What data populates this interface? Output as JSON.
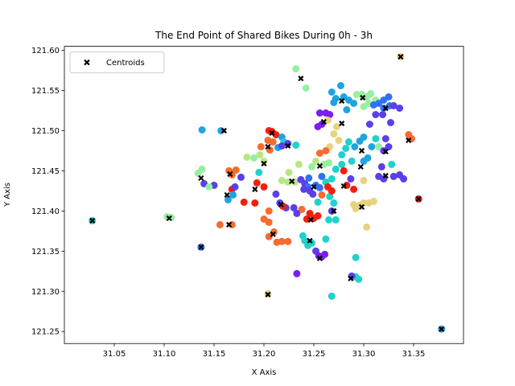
{
  "chart_data": {
    "type": "scatter",
    "title": "The End Point of Shared Bikes During 0h - 3h",
    "xlabel": "X Axis",
    "ylabel": "Y Axis",
    "xlim": [
      31.0,
      31.4
    ],
    "ylim": [
      121.235,
      121.605
    ],
    "xticks": [
      "31.05",
      "31.10",
      "31.15",
      "31.20",
      "31.25",
      "31.30",
      "31.35"
    ],
    "yticks": [
      "121.25",
      "121.30",
      "121.35",
      "121.40",
      "121.45",
      "121.50",
      "121.55",
      "121.60"
    ],
    "grid": false,
    "legend_position": "top-left",
    "legend_entries": [
      "Centroids"
    ],
    "points": [
      [
        31.138,
        121.501,
        "#1fa4e0"
      ],
      [
        31.157,
        121.5,
        "#1fa4e0"
      ],
      [
        31.165,
        121.45,
        "#f66b30"
      ],
      [
        31.172,
        121.451,
        "#f66b30"
      ],
      [
        31.168,
        121.445,
        "#f66b30"
      ],
      [
        31.177,
        121.442,
        "#5c3fe8"
      ],
      [
        31.14,
        121.434,
        "#5c3fe8"
      ],
      [
        31.15,
        121.432,
        "#5c3fe8"
      ],
      [
        31.145,
        121.43,
        "#97f0a0"
      ],
      [
        31.168,
        121.427,
        "#f31e0f"
      ],
      [
        31.171,
        121.43,
        "#5c3fe8"
      ],
      [
        31.18,
        121.411,
        "#f31e0f"
      ],
      [
        31.169,
        121.42,
        "#1fa4e0"
      ],
      [
        31.164,
        121.414,
        "#1fa4e0"
      ],
      [
        31.156,
        121.383,
        "#f66b30"
      ],
      [
        31.168,
        121.383,
        "#f66b30"
      ],
      [
        31.137,
        121.355,
        "#3070f3"
      ],
      [
        31.107,
        121.392,
        "#97f0a0"
      ],
      [
        31.103,
        121.393,
        "#97f0a0"
      ],
      [
        31.028,
        121.388,
        "#1fd2cc"
      ],
      [
        31.183,
        121.467,
        "#b8e880"
      ],
      [
        31.19,
        121.466,
        "#97f0a0"
      ],
      [
        31.195,
        121.448,
        "#1fd2cc"
      ],
      [
        31.196,
        121.47,
        "#b8e880"
      ],
      [
        31.197,
        121.48,
        "#f66b30"
      ],
      [
        31.2,
        121.462,
        "#b8e880"
      ],
      [
        31.204,
        121.488,
        "#f66b30"
      ],
      [
        31.208,
        121.499,
        "#f31e0f"
      ],
      [
        31.205,
        121.5,
        "#f31e0f"
      ],
      [
        31.212,
        121.495,
        "#f31e0f"
      ],
      [
        31.209,
        121.486,
        "#f66b30"
      ],
      [
        31.206,
        121.476,
        "#f66b30"
      ],
      [
        31.214,
        121.479,
        "#1fa4e0"
      ],
      [
        31.218,
        121.492,
        "#1fa4e0"
      ],
      [
        31.22,
        121.486,
        "#1fd2cc"
      ],
      [
        31.218,
        121.481,
        "#5c3fe8"
      ],
      [
        31.224,
        121.484,
        "#5c3fe8"
      ],
      [
        31.232,
        121.482,
        "#1fd2cc"
      ],
      [
        31.235,
        121.458,
        "#b8e880"
      ],
      [
        31.225,
        121.448,
        "#b8e880"
      ],
      [
        31.218,
        121.438,
        "#b8e880"
      ],
      [
        31.224,
        121.436,
        "#b8e880"
      ],
      [
        31.231,
        121.436,
        "#b8e880"
      ],
      [
        31.237,
        121.439,
        "#5c3fe8"
      ],
      [
        31.241,
        121.434,
        "#5c3fe8"
      ],
      [
        31.244,
        121.43,
        "#3070f3"
      ],
      [
        31.246,
        121.425,
        "#5c3fe8"
      ],
      [
        31.249,
        121.421,
        "#5c3fe8"
      ],
      [
        31.245,
        121.441,
        "#3070f3"
      ],
      [
        31.24,
        121.427,
        "#5c3fe8"
      ],
      [
        31.252,
        121.432,
        "#3070f3"
      ],
      [
        31.256,
        121.429,
        "#3070f3"
      ],
      [
        31.258,
        121.443,
        "#3070f3"
      ],
      [
        31.262,
        121.436,
        "#1fd2cc"
      ],
      [
        31.264,
        121.43,
        "#f31e0f"
      ],
      [
        31.266,
        121.418,
        "#1fd2cc"
      ],
      [
        31.268,
        121.425,
        "#f31e0f"
      ],
      [
        31.27,
        121.41,
        "#1fd2cc"
      ],
      [
        31.258,
        121.42,
        "#f66b30"
      ],
      [
        31.254,
        121.411,
        "#1fd2cc"
      ],
      [
        31.254,
        121.394,
        "#f31e0f"
      ],
      [
        31.25,
        121.391,
        "#f31e0f"
      ],
      [
        31.246,
        121.397,
        "#f31e0f"
      ],
      [
        31.243,
        121.39,
        "#f31e0f"
      ],
      [
        31.238,
        121.402,
        "#f66b30"
      ],
      [
        31.233,
        121.397,
        "#5c3fe8"
      ],
      [
        31.23,
        121.404,
        "#5c3fe8"
      ],
      [
        31.222,
        121.404,
        "#5c3fe8"
      ],
      [
        31.219,
        121.406,
        "#f31e0f"
      ],
      [
        31.216,
        121.41,
        "#5c3fe8"
      ],
      [
        31.212,
        121.421,
        "#5c3fe8"
      ],
      [
        31.2,
        121.43,
        "#f31e0f"
      ],
      [
        31.193,
        121.435,
        "#f31e0f"
      ],
      [
        31.191,
        121.41,
        "#f31e0f"
      ],
      [
        31.2,
        121.39,
        "#f66b30"
      ],
      [
        31.205,
        121.386,
        "#f66b30"
      ],
      [
        31.205,
        121.368,
        "#f66b30"
      ],
      [
        31.213,
        121.361,
        "#f66b30"
      ],
      [
        31.218,
        121.362,
        "#f66b30"
      ],
      [
        31.224,
        121.362,
        "#f66b30"
      ],
      [
        31.239,
        121.369,
        "#1fd2cc"
      ],
      [
        31.241,
        121.363,
        "#1fd2cc"
      ],
      [
        31.244,
        121.357,
        "#1fd2cc"
      ],
      [
        31.248,
        121.36,
        "#1fd2cc"
      ],
      [
        31.252,
        121.35,
        "#5c3fe8"
      ],
      [
        31.255,
        121.344,
        "#7a1ff0"
      ],
      [
        31.258,
        121.343,
        "#7a1ff0"
      ],
      [
        31.261,
        121.346,
        "#7a1ff0"
      ],
      [
        31.262,
        121.365,
        "#1fd2cc"
      ],
      [
        31.265,
        121.389,
        "#1fd2cc"
      ],
      [
        31.233,
        121.322,
        "#7a1ff0"
      ],
      [
        31.268,
        121.294,
        "#1fd2cc"
      ],
      [
        31.292,
        121.342,
        "#1fd2cc"
      ],
      [
        31.292,
        121.318,
        "#1fd2cc"
      ],
      [
        31.295,
        121.315,
        "#1fd2cc"
      ],
      [
        31.288,
        121.319,
        "#5c3fe8"
      ],
      [
        31.204,
        121.297,
        "#e7d27f"
      ],
      [
        31.232,
        121.577,
        "#97f0a0"
      ],
      [
        31.242,
        121.553,
        "#97f0a0"
      ],
      [
        31.337,
        121.592,
        "#e7d27f"
      ],
      [
        31.254,
        121.505,
        "#7a1ff0"
      ],
      [
        31.258,
        121.508,
        "#7a1ff0"
      ],
      [
        31.256,
        121.522,
        "#7a1ff0"
      ],
      [
        31.262,
        121.522,
        "#7a1ff0"
      ],
      [
        31.266,
        121.52,
        "#7a1ff0"
      ],
      [
        31.27,
        121.535,
        "#1fa4e0"
      ],
      [
        31.268,
        121.548,
        "#1fa4e0"
      ],
      [
        31.272,
        121.54,
        "#1fa4e0"
      ],
      [
        31.277,
        121.556,
        "#1fa4e0"
      ],
      [
        31.28,
        121.542,
        "#1fa4e0"
      ],
      [
        31.283,
        121.526,
        "#1fa4e0"
      ],
      [
        31.285,
        121.538,
        "#1fa4e0"
      ],
      [
        31.29,
        121.534,
        "#1fa4e0"
      ],
      [
        31.293,
        121.545,
        "#97f0a0"
      ],
      [
        31.298,
        121.545,
        "#97f0a0"
      ],
      [
        31.303,
        121.542,
        "#97f0a0"
      ],
      [
        31.307,
        121.546,
        "#97f0a0"
      ],
      [
        31.312,
        121.538,
        "#97f0a0"
      ],
      [
        31.3,
        121.53,
        "#97f0a0"
      ],
      [
        31.305,
        121.534,
        "#97f0a0"
      ],
      [
        31.31,
        121.532,
        "#3070f3"
      ],
      [
        31.315,
        121.534,
        "#3070f3"
      ],
      [
        31.32,
        121.528,
        "#3070f3"
      ],
      [
        31.326,
        121.531,
        "#3070f3"
      ],
      [
        31.33,
        121.531,
        "#5c3fe8"
      ],
      [
        31.336,
        121.528,
        "#5c3fe8"
      ],
      [
        31.32,
        121.538,
        "#3070f3"
      ],
      [
        31.325,
        121.542,
        "#3070f3"
      ],
      [
        31.312,
        121.52,
        "#5c3fe8"
      ],
      [
        31.306,
        121.508,
        "#5c3fe8"
      ],
      [
        31.319,
        121.52,
        "#5c3fe8"
      ],
      [
        31.327,
        121.51,
        "#5c3fe8"
      ],
      [
        31.3,
        121.492,
        "#1fa4e0"
      ],
      [
        31.296,
        121.487,
        "#1fa4e0"
      ],
      [
        31.291,
        121.48,
        "#1fa4e0"
      ],
      [
        31.285,
        121.486,
        "#1fd2cc"
      ],
      [
        31.282,
        121.478,
        "#1fd2cc"
      ],
      [
        31.278,
        121.47,
        "#1fd2cc"
      ],
      [
        31.275,
        121.488,
        "#e7d27f"
      ],
      [
        31.27,
        121.496,
        "#e7d27f"
      ],
      [
        31.273,
        121.505,
        "#e7d27f"
      ],
      [
        31.264,
        121.513,
        "#e7d27f"
      ],
      [
        31.266,
        121.48,
        "#e7d27f"
      ],
      [
        31.262,
        121.475,
        "#f66b30"
      ],
      [
        31.256,
        121.472,
        "#f66b30"
      ],
      [
        31.252,
        121.462,
        "#b8e880"
      ],
      [
        31.248,
        121.455,
        "#97f0a0"
      ],
      [
        31.26,
        121.458,
        "#97f0a0"
      ],
      [
        31.265,
        121.46,
        "#97f0a0"
      ],
      [
        31.278,
        121.458,
        "#1fd2cc"
      ],
      [
        31.288,
        121.462,
        "#1fd2cc"
      ],
      [
        31.3,
        121.462,
        "#1fa4e0"
      ],
      [
        31.304,
        121.466,
        "#1fa4e0"
      ],
      [
        31.308,
        121.48,
        "#1fa4e0"
      ],
      [
        31.315,
        121.48,
        "#97f0a0"
      ],
      [
        31.312,
        121.49,
        "#1fd2cc"
      ],
      [
        31.32,
        121.475,
        "#5c3fe8"
      ],
      [
        31.322,
        121.49,
        "#5c3fe8"
      ],
      [
        31.325,
        121.48,
        "#5c3fe8"
      ],
      [
        31.328,
        121.458,
        "#1fd2cc"
      ],
      [
        31.318,
        121.455,
        "#5c3fe8"
      ],
      [
        31.315,
        121.443,
        "#5c3fe8"
      ],
      [
        31.32,
        121.44,
        "#5c3fe8"
      ],
      [
        31.33,
        121.443,
        "#5c3fe8"
      ],
      [
        31.336,
        121.445,
        "#5c3fe8"
      ],
      [
        31.34,
        121.44,
        "#5c3fe8"
      ],
      [
        31.345,
        121.495,
        "#f66b30"
      ],
      [
        31.348,
        121.49,
        "#f66b30"
      ],
      [
        31.355,
        121.415,
        "#f31e0f"
      ],
      [
        31.378,
        121.253,
        "#1fa4e0"
      ],
      [
        31.29,
        121.408,
        "#e7d27f"
      ],
      [
        31.292,
        121.403,
        "#e7d27f"
      ],
      [
        31.296,
        121.407,
        "#e7d27f"
      ],
      [
        31.3,
        121.41,
        "#e7d27f"
      ],
      [
        31.305,
        121.41,
        "#e7d27f"
      ],
      [
        31.31,
        121.412,
        "#e7d27f"
      ],
      [
        31.303,
        121.38,
        "#e7d27f"
      ],
      [
        31.283,
        121.432,
        "#f31e0f"
      ],
      [
        31.287,
        121.44,
        "#5c3fe8"
      ],
      [
        31.29,
        121.427,
        "#f31e0f"
      ],
      [
        31.28,
        121.45,
        "#f31e0f"
      ],
      [
        31.3,
        121.438,
        "#e7d27f"
      ],
      [
        31.268,
        121.4,
        "#5c3fe8"
      ],
      [
        31.272,
        121.389,
        "#1fd2cc"
      ],
      [
        31.134,
        121.447,
        "#97f0a0"
      ],
      [
        31.138,
        121.452,
        "#97f0a0"
      ],
      [
        31.205,
        121.4,
        "#f66b30"
      ],
      [
        31.21,
        121.374,
        "#f66b30"
      ],
      [
        31.268,
        121.44,
        "#1fd2cc"
      ],
      [
        31.272,
        121.452,
        "#1fd2cc"
      ]
    ],
    "centroids": [
      [
        31.337,
        121.592
      ],
      [
        31.237,
        121.565
      ],
      [
        31.16,
        121.5
      ],
      [
        31.208,
        121.497
      ],
      [
        31.26,
        121.511
      ],
      [
        31.278,
        121.537
      ],
      [
        31.299,
        121.541
      ],
      [
        31.322,
        121.528
      ],
      [
        31.278,
        121.509
      ],
      [
        31.204,
        121.48
      ],
      [
        31.224,
        121.481
      ],
      [
        31.298,
        121.475
      ],
      [
        31.322,
        121.474
      ],
      [
        31.345,
        121.488
      ],
      [
        31.2,
        121.459
      ],
      [
        31.256,
        121.456
      ],
      [
        31.297,
        121.455
      ],
      [
        31.166,
        121.446
      ],
      [
        31.137,
        121.441
      ],
      [
        31.228,
        121.437
      ],
      [
        31.25,
        121.43
      ],
      [
        31.28,
        121.431
      ],
      [
        31.322,
        121.444
      ],
      [
        31.191,
        121.427
      ],
      [
        31.163,
        121.42
      ],
      [
        31.217,
        121.408
      ],
      [
        31.27,
        121.4
      ],
      [
        31.298,
        121.405
      ],
      [
        31.355,
        121.415
      ],
      [
        31.105,
        121.391
      ],
      [
        31.028,
        121.388
      ],
      [
        31.165,
        121.383
      ],
      [
        31.247,
        121.389
      ],
      [
        31.209,
        121.371
      ],
      [
        31.246,
        121.363
      ],
      [
        31.137,
        121.355
      ],
      [
        31.256,
        121.341
      ],
      [
        31.287,
        121.316
      ],
      [
        31.204,
        121.296
      ],
      [
        31.378,
        121.253
      ]
    ]
  }
}
